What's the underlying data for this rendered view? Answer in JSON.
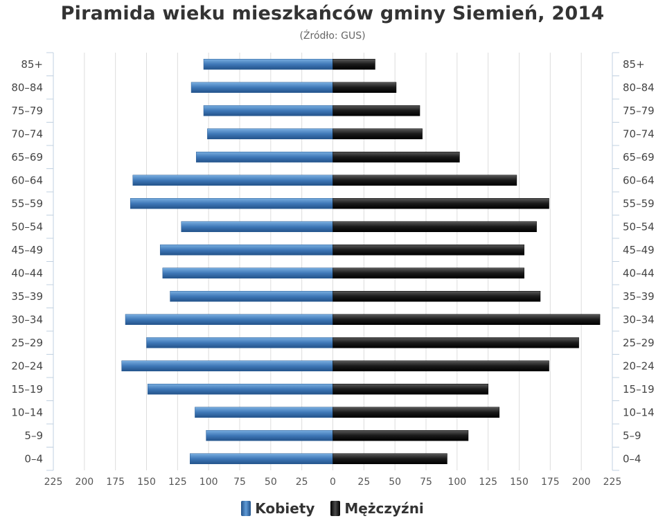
{
  "chart_data": {
    "type": "bar",
    "orientation": "horizontal",
    "layout": "population-pyramid",
    "title": "Piramida wieku mieszkańców gminy Siemień, 2014",
    "subtitle": "(Źródło: GUS)",
    "categories": [
      "0–4",
      "5–9",
      "10–14",
      "15–19",
      "20–24",
      "25–29",
      "30–34",
      "35–39",
      "40–44",
      "45–49",
      "50–54",
      "55–59",
      "60–64",
      "65–69",
      "70–74",
      "75–79",
      "80–84",
      "85+"
    ],
    "series": [
      {
        "name": "Kobiety",
        "side": "left",
        "color": "#3a74b5",
        "values": [
          115,
          102,
          111,
          149,
          170,
          150,
          167,
          131,
          137,
          139,
          122,
          163,
          161,
          110,
          101,
          104,
          114,
          104
        ]
      },
      {
        "name": "Mężczyźni",
        "side": "right",
        "color": "#111111",
        "values": [
          92,
          109,
          134,
          125,
          174,
          198,
          215,
          167,
          154,
          154,
          164,
          174,
          148,
          102,
          72,
          70,
          51,
          34
        ]
      }
    ],
    "xlim": [
      -225,
      225
    ],
    "xticks": [
      "225",
      "200",
      "175",
      "150",
      "125",
      "100",
      "75",
      "50",
      "25",
      "0",
      "25",
      "50",
      "75",
      "100",
      "125",
      "150",
      "175",
      "200",
      "225"
    ],
    "grid": true,
    "legend_position": "bottom"
  }
}
